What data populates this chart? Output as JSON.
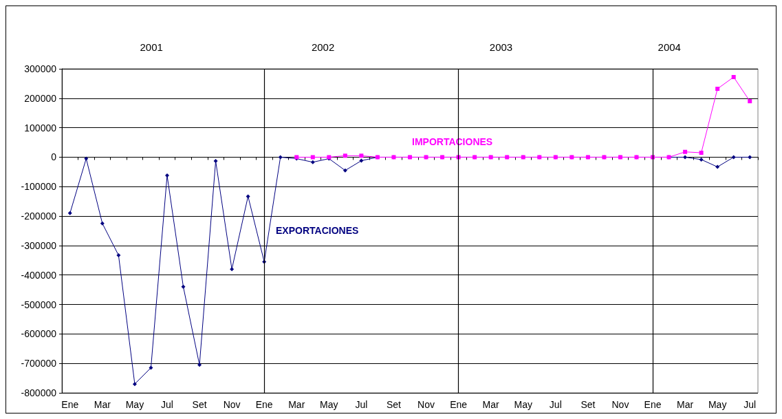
{
  "chart_data": {
    "type": "line",
    "categories": [
      "Ene",
      null,
      "Mar",
      null,
      "May",
      null,
      "Jul",
      null,
      "Set",
      null,
      "Nov",
      null,
      "Ene",
      null,
      "Mar",
      null,
      "May",
      null,
      "Jul",
      null,
      "Set",
      null,
      "Nov",
      null,
      "Ene",
      null,
      "Mar",
      null,
      "May",
      null,
      "Jul",
      null,
      "Set",
      null,
      "Nov",
      null,
      "Ene",
      null,
      "Mar",
      null,
      "May",
      null,
      "Jul"
    ],
    "series": [
      {
        "name": "EXPORTACIONES",
        "color": "#000080",
        "marker": "diamond",
        "values": [
          -190000,
          -5000,
          -225000,
          -333000,
          -770000,
          -715000,
          -62000,
          -440000,
          -705000,
          -13000,
          -380000,
          -133000,
          -355000,
          0,
          -5000,
          -17000,
          -5000,
          -45000,
          -12000,
          0,
          0,
          0,
          0,
          0,
          0,
          0,
          0,
          0,
          0,
          0,
          0,
          0,
          0,
          0,
          0,
          0,
          0,
          0,
          0,
          -8000,
          -33000,
          0,
          0
        ]
      },
      {
        "name": "IMPORTACIONES",
        "color": "#ff00ff",
        "marker": "square",
        "values": [
          null,
          null,
          null,
          null,
          null,
          null,
          null,
          null,
          null,
          null,
          null,
          null,
          null,
          null,
          0,
          0,
          0,
          5000,
          5000,
          0,
          0,
          0,
          0,
          0,
          0,
          0,
          0,
          0,
          0,
          0,
          0,
          0,
          0,
          0,
          0,
          0,
          0,
          0,
          18000,
          15000,
          232000,
          272000,
          190000
        ]
      }
    ],
    "ylim": [
      -800000,
      300000
    ],
    "yticks": [
      -800000,
      -700000,
      -600000,
      -500000,
      -400000,
      -300000,
      -200000,
      -100000,
      0,
      100000,
      200000,
      300000
    ],
    "grid": true,
    "legend": false,
    "annotations": [
      "2001",
      "2002",
      "2003",
      "2004"
    ]
  }
}
